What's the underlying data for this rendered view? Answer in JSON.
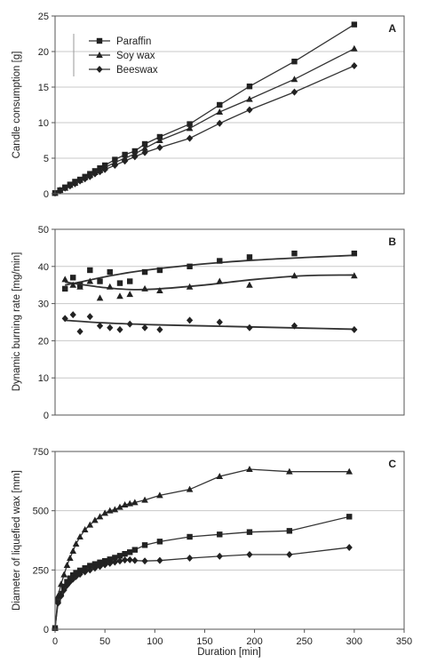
{
  "figure": {
    "x_axis_label": "Duration [min]",
    "x_ticks": [
      0,
      50,
      100,
      150,
      200,
      250,
      300,
      350
    ],
    "colors": {
      "marker": "#222222",
      "line": "#333333",
      "grid": "#c8c8c8"
    },
    "legend": [
      {
        "name": "Paraffin",
        "marker": "square"
      },
      {
        "name": "Soy wax",
        "marker": "triangle"
      },
      {
        "name": "Beeswax",
        "marker": "diamond"
      }
    ]
  },
  "chart_data": [
    {
      "panel": "A",
      "type": "line",
      "ylabel": "Candle consumption [g]",
      "xlabel": "",
      "xlim": [
        0,
        350
      ],
      "ylim": [
        0,
        25
      ],
      "yticks": [
        0,
        5,
        10,
        15,
        20,
        25
      ],
      "grid": "horizontal",
      "legend_position": "top-left",
      "series": [
        {
          "name": "Paraffin",
          "marker": "square",
          "x": [
            0,
            5,
            10,
            15,
            20,
            25,
            30,
            35,
            40,
            45,
            50,
            60,
            70,
            80,
            90,
            105,
            135,
            165,
            195,
            240,
            300
          ],
          "y": [
            0.1,
            0.5,
            0.9,
            1.3,
            1.7,
            2.0,
            2.4,
            2.8,
            3.2,
            3.6,
            4.0,
            4.8,
            5.5,
            6.0,
            7.0,
            8.0,
            9.8,
            12.5,
            15.1,
            18.6,
            23.8
          ]
        },
        {
          "name": "Soy wax",
          "marker": "triangle",
          "x": [
            0,
            5,
            10,
            15,
            20,
            25,
            30,
            35,
            40,
            45,
            50,
            60,
            70,
            80,
            90,
            105,
            135,
            165,
            195,
            240,
            300
          ],
          "y": [
            0.1,
            0.5,
            0.8,
            1.2,
            1.5,
            1.9,
            2.3,
            2.6,
            3.0,
            3.3,
            3.7,
            4.4,
            5.0,
            5.6,
            6.4,
            7.5,
            9.2,
            11.5,
            13.3,
            16.1,
            20.4
          ]
        },
        {
          "name": "Beeswax",
          "marker": "diamond",
          "x": [
            0,
            5,
            10,
            15,
            20,
            25,
            30,
            35,
            40,
            45,
            50,
            60,
            70,
            80,
            90,
            105,
            135,
            165,
            195,
            240,
            300
          ],
          "y": [
            0.1,
            0.4,
            0.8,
            1.1,
            1.4,
            1.8,
            2.1,
            2.4,
            2.8,
            3.1,
            3.4,
            4.0,
            4.6,
            5.2,
            5.8,
            6.5,
            7.8,
            9.9,
            11.8,
            14.3,
            18.0
          ]
        }
      ]
    },
    {
      "panel": "B",
      "type": "scatter",
      "ylabel": "Dynamic burning rate [mg/min]",
      "xlabel": "",
      "xlim": [
        0,
        350
      ],
      "ylim": [
        0,
        50
      ],
      "yticks": [
        0,
        10,
        20,
        30,
        40,
        50
      ],
      "grid": "horizontal",
      "series": [
        {
          "name": "Paraffin",
          "marker": "square",
          "x": [
            10,
            18,
            25,
            35,
            45,
            55,
            65,
            75,
            90,
            105,
            135,
            165,
            195,
            240,
            300
          ],
          "y": [
            34.0,
            37.0,
            35.0,
            39.0,
            36.0,
            38.5,
            35.5,
            36.0,
            38.5,
            39.0,
            40.0,
            41.5,
            42.5,
            43.5,
            43.5
          ],
          "trend_x": [
            10,
            25,
            50,
            75,
            100,
            150,
            200,
            250,
            300
          ],
          "trend_y": [
            35.0,
            35.8,
            37.2,
            38.4,
            39.3,
            40.7,
            41.7,
            42.4,
            43.0
          ]
        },
        {
          "name": "Soy wax",
          "marker": "triangle",
          "x": [
            10,
            18,
            25,
            35,
            45,
            55,
            65,
            75,
            90,
            105,
            135,
            165,
            195,
            240,
            300
          ],
          "y": [
            36.5,
            35.0,
            34.5,
            36.0,
            31.5,
            34.5,
            32.0,
            32.5,
            34.0,
            33.5,
            34.5,
            36.0,
            35.0,
            37.5,
            37.5
          ],
          "trend_x": [
            10,
            25,
            50,
            75,
            100,
            150,
            200,
            250,
            300
          ],
          "trend_y": [
            35.8,
            35.2,
            34.3,
            33.8,
            33.9,
            35.0,
            36.5,
            37.5,
            37.7
          ]
        },
        {
          "name": "Beeswax",
          "marker": "diamond",
          "x": [
            10,
            18,
            25,
            35,
            45,
            55,
            65,
            75,
            90,
            105,
            135,
            165,
            195,
            240,
            300
          ],
          "y": [
            26.0,
            27.0,
            22.5,
            26.5,
            24.0,
            23.5,
            23.0,
            24.5,
            23.5,
            23.0,
            25.5,
            25.0,
            23.5,
            24.0,
            23.0
          ],
          "trend_x": [
            10,
            50,
            100,
            150,
            200,
            250,
            300
          ],
          "trend_y": [
            25.5,
            24.8,
            24.3,
            24.0,
            23.7,
            23.4,
            23.1
          ]
        }
      ]
    },
    {
      "panel": "C",
      "type": "line",
      "ylabel": "Diameter of liquefied wax [mm]",
      "xlabel": "Duration [min]",
      "xlim": [
        0,
        350
      ],
      "ylim": [
        0,
        750
      ],
      "yticks": [
        0,
        250,
        500,
        750
      ],
      "grid": "horizontal",
      "series": [
        {
          "name": "Paraffin",
          "marker": "square",
          "x": [
            0,
            3,
            6,
            9,
            12,
            15,
            18,
            21,
            25,
            30,
            35,
            40,
            45,
            50,
            55,
            60,
            65,
            70,
            75,
            80,
            90,
            105,
            135,
            165,
            195,
            235,
            295
          ],
          "y": [
            5,
            120,
            150,
            180,
            200,
            215,
            228,
            238,
            248,
            258,
            268,
            275,
            282,
            288,
            295,
            302,
            310,
            318,
            325,
            335,
            355,
            370,
            390,
            400,
            410,
            415,
            475
          ]
        },
        {
          "name": "Soy wax",
          "marker": "triangle",
          "x": [
            0,
            3,
            6,
            9,
            12,
            15,
            18,
            21,
            25,
            30,
            35,
            40,
            45,
            50,
            55,
            60,
            65,
            70,
            75,
            80,
            90,
            105,
            135,
            165,
            195,
            235,
            295
          ],
          "y": [
            5,
            140,
            190,
            230,
            270,
            300,
            330,
            360,
            390,
            420,
            440,
            460,
            475,
            490,
            500,
            505,
            515,
            525,
            530,
            535,
            545,
            565,
            590,
            645,
            675,
            665,
            665
          ]
        },
        {
          "name": "Beeswax",
          "marker": "diamond",
          "x": [
            0,
            3,
            6,
            9,
            12,
            15,
            18,
            21,
            25,
            30,
            35,
            40,
            45,
            50,
            55,
            60,
            65,
            70,
            75,
            80,
            90,
            105,
            135,
            165,
            195,
            235,
            295
          ],
          "y": [
            5,
            110,
            140,
            165,
            185,
            200,
            212,
            222,
            232,
            242,
            250,
            258,
            265,
            272,
            278,
            283,
            288,
            292,
            293,
            290,
            288,
            290,
            300,
            308,
            315,
            315,
            345
          ]
        }
      ]
    }
  ]
}
